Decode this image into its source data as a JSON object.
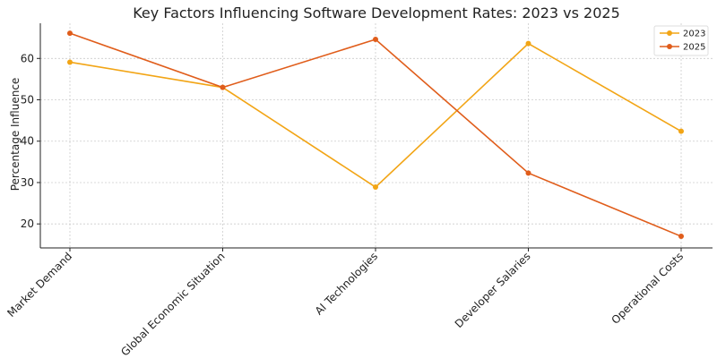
{
  "chart_data": {
    "type": "line",
    "title": "Key Factors Influencing Software Development Rates: 2023 vs 2025",
    "xlabel": "",
    "ylabel": "Percentage Influence",
    "categories": [
      "Market Demand",
      "Global Economic Situation",
      "AI Technologies",
      "Developer Salaries",
      "Operational Costs"
    ],
    "ylim": [
      14.2,
      68.5
    ],
    "yticks": [
      20,
      30,
      40,
      50,
      60
    ],
    "grid": true,
    "legend_position": "top-right",
    "series": [
      {
        "name": "2023",
        "color": "#f2a516",
        "values": [
          59.1,
          53.0,
          28.9,
          63.6,
          42.4
        ]
      },
      {
        "name": "2025",
        "color": "#e05d1b",
        "values": [
          66.1,
          53.0,
          64.6,
          32.3,
          17.0
        ]
      }
    ]
  }
}
